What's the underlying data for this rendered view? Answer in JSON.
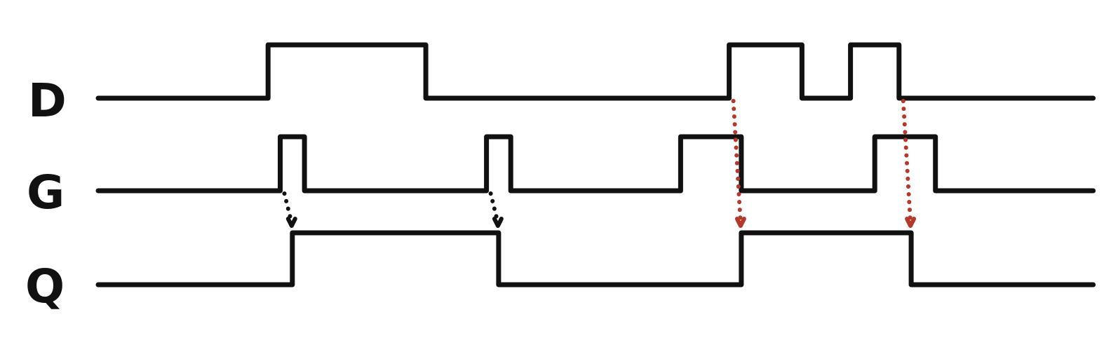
{
  "colors": {
    "background": "#ffffff",
    "waveform": "#111111",
    "dependency_black": "#111111",
    "dependency_red": "#b5392a"
  },
  "signals": [
    {
      "name": "D",
      "levels": [
        {
          "start": 0,
          "end": 14,
          "value": 0
        },
        {
          "start": 14,
          "end": 27,
          "value": 1
        },
        {
          "start": 27,
          "end": 52,
          "value": 0
        },
        {
          "start": 52,
          "end": 58,
          "value": 1
        },
        {
          "start": 58,
          "end": 62,
          "value": 0
        },
        {
          "start": 62,
          "end": 66,
          "value": 1
        },
        {
          "start": 66,
          "end": 82,
          "value": 0
        }
      ]
    },
    {
      "name": "G",
      "levels": [
        {
          "start": 0,
          "end": 15,
          "value": 0
        },
        {
          "start": 15,
          "end": 17,
          "value": 1
        },
        {
          "start": 17,
          "end": 32,
          "value": 0
        },
        {
          "start": 32,
          "end": 34,
          "value": 1
        },
        {
          "start": 34,
          "end": 48,
          "value": 0
        },
        {
          "start": 48,
          "end": 53,
          "value": 1
        },
        {
          "start": 53,
          "end": 64,
          "value": 0
        },
        {
          "start": 64,
          "end": 69,
          "value": 1
        },
        {
          "start": 69,
          "end": 82,
          "value": 0
        }
      ]
    },
    {
      "name": "Q",
      "levels": [
        {
          "start": 0,
          "end": 16,
          "value": 0
        },
        {
          "start": 16,
          "end": 33,
          "value": 1
        },
        {
          "start": 33,
          "end": 53,
          "value": 0
        },
        {
          "start": 53,
          "end": 67,
          "value": 1
        },
        {
          "start": 67,
          "end": 82,
          "value": 0
        }
      ]
    }
  ],
  "dependencies": [
    {
      "from_signal": "G",
      "from_time": 15,
      "to_signal": "Q",
      "to_time": 16,
      "color": "black"
    },
    {
      "from_signal": "G",
      "from_time": 32,
      "to_signal": "Q",
      "to_time": 33,
      "color": "black"
    },
    {
      "from_signal": "D",
      "from_time": 52,
      "to_signal": "Q",
      "to_time": 53,
      "color": "red"
    },
    {
      "from_signal": "D",
      "from_time": 66,
      "to_signal": "Q",
      "to_time": 67,
      "color": "red"
    }
  ]
}
